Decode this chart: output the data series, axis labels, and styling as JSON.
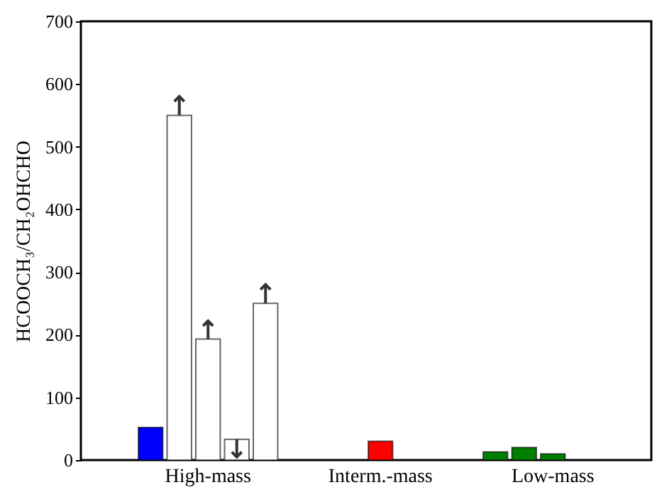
{
  "chart_data": {
    "type": "bar",
    "ylabel": "HCOOCH₃/CH₂OHCHO",
    "categories": [
      null,
      null,
      null,
      null,
      "High-mass",
      null,
      null,
      null,
      null,
      null,
      "Interm.-mass",
      null,
      null,
      null,
      null,
      null,
      "Low-mass",
      null,
      null,
      null
    ],
    "values": [
      null,
      null,
      52,
      550,
      193,
      33,
      250,
      null,
      null,
      null,
      30,
      null,
      null,
      null,
      13,
      20,
      10,
      null,
      null,
      null
    ],
    "colors": [
      null,
      null,
      "#0000ff",
      "#ffffff",
      "#ffffff",
      "#ffffff",
      "#ffffff",
      null,
      null,
      null,
      "#ff0000",
      null,
      null,
      null,
      "#008000",
      "#008000",
      "#008000",
      null,
      null,
      null
    ],
    "errors": [
      null,
      null,
      null,
      [
        550,
        580
      ],
      [
        193,
        222
      ],
      [
        5,
        33
      ],
      [
        250,
        280
      ],
      null,
      null,
      null,
      null,
      null,
      null,
      null,
      null,
      null,
      null,
      null,
      null,
      null
    ],
    "ylim": [
      0,
      700
    ],
    "yticks": [
      0,
      100,
      200,
      300,
      400,
      500,
      600,
      700
    ],
    "grid": false
  }
}
